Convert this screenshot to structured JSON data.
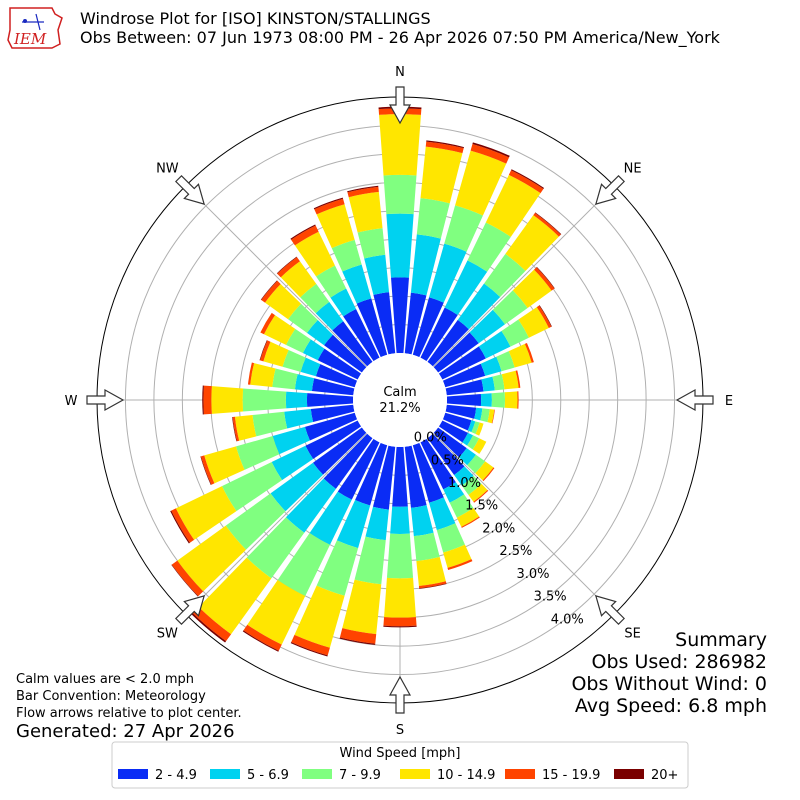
{
  "header": {
    "logo_text": "IEM",
    "title_line1": "Windrose Plot for [ISO] KINSTON/STALLINGS",
    "title_line2": "Obs Between: 07 Jun 1973 08:00 PM - 26 Apr 2026 07:50 PM America/New_York"
  },
  "calm": {
    "label": "Calm",
    "value": "21.2%"
  },
  "notes": {
    "line1": "Calm values are < 2.0 mph",
    "line2": "Bar Convention: Meteorology",
    "line3": "Flow arrows relative to plot center.",
    "generated": "Generated: 27 Apr 2026"
  },
  "summary": {
    "title": "Summary",
    "obs_used": "Obs Used: 286982",
    "obs_without_wind": "Obs Without Wind: 0",
    "avg_speed": "Avg Speed: 6.8 mph"
  },
  "colors": {
    "bins": [
      "#0a2cf5",
      "#00d2f0",
      "#80ff80",
      "#ffe600",
      "#ff4400",
      "#7a0000"
    ],
    "grid": "#b0b0b0"
  },
  "chart_data": {
    "type": "windrose",
    "units": "%",
    "calm_percent": 21.2,
    "radial_ticks": [
      "0.0%",
      "0.5%",
      "1.0%",
      "1.5%",
      "2.0%",
      "2.5%",
      "3.0%",
      "3.5%",
      "4.0%"
    ],
    "radial_tick_values": [
      0,
      0.5,
      1.0,
      1.5,
      2.0,
      2.5,
      3.0,
      3.5,
      4.0
    ],
    "rmax": 4.5,
    "direction_labels": [
      "N",
      "NE",
      "E",
      "SE",
      "S",
      "SW",
      "W",
      "NW"
    ],
    "legend": {
      "title": "Wind Speed [mph]",
      "bins": [
        "2 - 4.9",
        "5 - 6.9",
        "7 - 9.9",
        "10 - 14.9",
        "15 - 19.9",
        "20+"
      ]
    },
    "directions_deg": [
      0,
      10,
      20,
      30,
      40,
      50,
      60,
      70,
      80,
      90,
      100,
      110,
      120,
      130,
      140,
      150,
      160,
      170,
      180,
      190,
      200,
      210,
      220,
      230,
      240,
      250,
      260,
      270,
      280,
      290,
      300,
      310,
      320,
      330,
      340,
      350
    ],
    "cumulative": [
      [
        1.33,
        2.45,
        3.13,
        4.2,
        4.3,
        4.33
      ],
      [
        1.07,
        2.1,
        2.74,
        3.65,
        3.74,
        3.76
      ],
      [
        1.05,
        2.03,
        2.73,
        3.73,
        3.85,
        3.88
      ],
      [
        0.98,
        1.9,
        2.64,
        3.57,
        3.66,
        3.68
      ],
      [
        0.91,
        1.7,
        2.34,
        3.18,
        3.23,
        3.24
      ],
      [
        0.88,
        1.45,
        1.94,
        2.46,
        2.52,
        2.53
      ],
      [
        0.85,
        1.33,
        1.69,
        2.08,
        2.13,
        2.14
      ],
      [
        0.73,
        1.03,
        1.27,
        1.58,
        1.62,
        1.62
      ],
      [
        0.65,
        0.85,
        1.02,
        1.27,
        1.3,
        1.3
      ],
      [
        0.6,
        0.79,
        1.02,
        1.24,
        1.26,
        1.26
      ],
      [
        0.52,
        0.63,
        0.76,
        0.84,
        0.85,
        0.85
      ],
      [
        0.48,
        0.55,
        0.63,
        0.7,
        0.7,
        0.7
      ],
      [
        0.5,
        0.6,
        0.72,
        0.86,
        0.86,
        0.86
      ],
      [
        0.62,
        0.82,
        1.02,
        1.2,
        1.22,
        1.22
      ],
      [
        0.8,
        1.03,
        1.23,
        1.38,
        1.4,
        1.4
      ],
      [
        0.92,
        1.18,
        1.47,
        1.65,
        1.67,
        1.67
      ],
      [
        1.05,
        1.55,
        1.96,
        2.24,
        2.28,
        2.28
      ],
      [
        1.08,
        1.58,
        2.02,
        2.46,
        2.5,
        2.51
      ],
      [
        1.05,
        1.53,
        2.31,
        3.0,
        3.15,
        3.17
      ],
      [
        1.11,
        1.65,
        2.43,
        3.31,
        3.48,
        3.5
      ],
      [
        1.1,
        1.88,
        2.75,
        3.7,
        3.84,
        3.86
      ],
      [
        1.12,
        2.0,
        3.0,
        3.95,
        4.07,
        4.09
      ],
      [
        1.1,
        2.05,
        3.04,
        4.25,
        4.4,
        4.43
      ],
      [
        1.06,
        1.98,
        2.95,
        4.0,
        4.12,
        4.13
      ],
      [
        1.02,
        1.68,
        2.65,
        3.55,
        3.64,
        3.66
      ],
      [
        0.91,
        1.5,
        2.17,
        2.75,
        2.81,
        2.82
      ],
      [
        0.75,
        1.22,
        1.78,
        2.09,
        2.13,
        2.14
      ],
      [
        0.81,
        1.18,
        1.94,
        2.49,
        2.63,
        2.65
      ],
      [
        0.73,
        1.03,
        1.43,
        1.82,
        1.86,
        1.86
      ],
      [
        0.71,
        0.99,
        1.32,
        1.67,
        1.73,
        1.74
      ],
      [
        0.78,
        1.07,
        1.4,
        1.83,
        1.9,
        1.9
      ],
      [
        0.82,
        1.19,
        1.6,
        2.1,
        2.18,
        2.19
      ],
      [
        0.88,
        1.3,
        1.69,
        2.18,
        2.27,
        2.28
      ],
      [
        0.95,
        1.35,
        1.8,
        2.46,
        2.58,
        2.6
      ],
      [
        1.03,
        1.65,
        2.1,
        2.75,
        2.85,
        2.87
      ],
      [
        1.08,
        1.74,
        2.21,
        2.85,
        2.94,
        2.96
      ]
    ]
  }
}
